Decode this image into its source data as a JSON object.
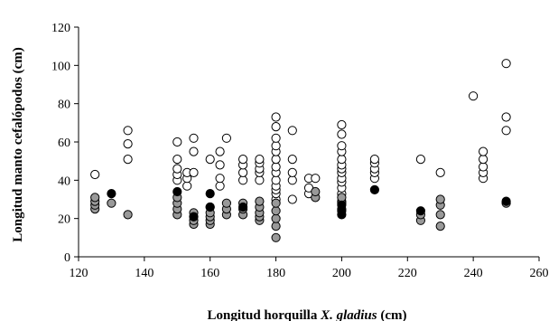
{
  "chart_data": {
    "type": "scatter",
    "title": "",
    "xlabel": "Longitud horquilla ",
    "xlabel_italic": "X. gladius",
    "xlabel_suffix": " (cm)",
    "ylabel": "Longitud manto cefalópodos (cm)",
    "xlim": [
      120,
      260
    ],
    "ylim": [
      0,
      120
    ],
    "xticks": [
      120,
      140,
      160,
      180,
      200,
      220,
      240,
      260
    ],
    "yticks": [
      0,
      20,
      40,
      60,
      80,
      100,
      120
    ],
    "xtick_labels": [
      "120",
      "140",
      "160",
      "180",
      "200",
      "220",
      "240",
      "260"
    ],
    "ytick_labels": [
      "0",
      "20",
      "40",
      "60",
      "80",
      "100",
      "120"
    ],
    "grid": false,
    "legend": "none",
    "series": [
      {
        "color": "#ffffff",
        "points": [
          [
            125,
            43
          ],
          [
            135,
            51
          ],
          [
            135,
            59
          ],
          [
            135,
            66
          ],
          [
            150,
            40
          ],
          [
            150,
            43
          ],
          [
            150,
            46
          ],
          [
            150,
            51
          ],
          [
            150,
            60
          ],
          [
            153,
            37
          ],
          [
            153,
            41
          ],
          [
            153,
            44
          ],
          [
            155,
            44
          ],
          [
            155,
            55
          ],
          [
            155,
            62
          ],
          [
            160,
            51
          ],
          [
            163,
            37
          ],
          [
            163,
            41
          ],
          [
            163,
            48
          ],
          [
            163,
            55
          ],
          [
            165,
            62
          ],
          [
            170,
            40
          ],
          [
            170,
            44
          ],
          [
            170,
            48
          ],
          [
            170,
            51
          ],
          [
            175,
            40
          ],
          [
            175,
            44
          ],
          [
            175,
            46
          ],
          [
            175,
            49
          ],
          [
            175,
            51
          ],
          [
            180,
            30
          ],
          [
            180,
            33
          ],
          [
            180,
            35
          ],
          [
            180,
            37
          ],
          [
            180,
            40
          ],
          [
            180,
            44
          ],
          [
            180,
            47
          ],
          [
            180,
            51
          ],
          [
            180,
            55
          ],
          [
            180,
            58
          ],
          [
            180,
            62
          ],
          [
            180,
            68
          ],
          [
            180,
            73
          ],
          [
            185,
            30
          ],
          [
            185,
            40
          ],
          [
            185,
            44
          ],
          [
            185,
            51
          ],
          [
            185,
            66
          ],
          [
            190,
            33
          ],
          [
            190,
            36
          ],
          [
            190,
            41
          ],
          [
            192,
            41
          ],
          [
            200,
            29
          ],
          [
            200,
            33
          ],
          [
            200,
            36
          ],
          [
            200,
            39
          ],
          [
            200,
            41
          ],
          [
            200,
            44
          ],
          [
            200,
            46
          ],
          [
            200,
            48
          ],
          [
            200,
            51
          ],
          [
            200,
            55
          ],
          [
            200,
            58
          ],
          [
            200,
            64
          ],
          [
            200,
            69
          ],
          [
            210,
            41
          ],
          [
            210,
            44
          ],
          [
            210,
            46
          ],
          [
            210,
            49
          ],
          [
            210,
            51
          ],
          [
            224,
            51
          ],
          [
            230,
            44
          ],
          [
            240,
            84
          ],
          [
            243,
            41
          ],
          [
            243,
            44
          ],
          [
            243,
            47
          ],
          [
            243,
            51
          ],
          [
            243,
            55
          ],
          [
            250,
            66
          ],
          [
            250,
            73
          ],
          [
            250,
            101
          ]
        ]
      },
      {
        "color": "#999999",
        "points": [
          [
            125,
            25
          ],
          [
            125,
            27
          ],
          [
            125,
            29
          ],
          [
            125,
            31
          ],
          [
            130,
            28
          ],
          [
            135,
            22
          ],
          [
            150,
            22
          ],
          [
            150,
            25
          ],
          [
            150,
            28
          ],
          [
            150,
            31
          ],
          [
            155,
            17
          ],
          [
            155,
            19
          ],
          [
            155,
            21
          ],
          [
            155,
            23
          ],
          [
            160,
            17
          ],
          [
            160,
            19
          ],
          [
            160,
            21
          ],
          [
            160,
            23
          ],
          [
            160,
            26
          ],
          [
            165,
            22
          ],
          [
            165,
            25
          ],
          [
            165,
            28
          ],
          [
            170,
            22
          ],
          [
            170,
            25
          ],
          [
            170,
            28
          ],
          [
            175,
            19
          ],
          [
            175,
            21
          ],
          [
            175,
            23
          ],
          [
            175,
            26
          ],
          [
            175,
            29
          ],
          [
            180,
            10
          ],
          [
            180,
            16
          ],
          [
            180,
            20
          ],
          [
            180,
            24
          ],
          [
            180,
            28
          ],
          [
            192,
            31
          ],
          [
            192,
            34
          ],
          [
            200,
            25
          ],
          [
            200,
            28
          ],
          [
            200,
            31
          ],
          [
            224,
            19
          ],
          [
            224,
            22
          ],
          [
            230,
            16
          ],
          [
            230,
            22
          ],
          [
            230,
            27
          ],
          [
            230,
            30
          ],
          [
            250,
            28
          ]
        ]
      },
      {
        "color": "#000000",
        "points": [
          [
            130,
            33
          ],
          [
            150,
            34
          ],
          [
            155,
            21
          ],
          [
            160,
            33
          ],
          [
            160,
            26
          ],
          [
            170,
            26
          ],
          [
            200,
            22
          ],
          [
            200,
            24
          ],
          [
            200,
            27
          ],
          [
            210,
            35
          ],
          [
            224,
            24
          ],
          [
            250,
            29
          ]
        ]
      }
    ]
  }
}
